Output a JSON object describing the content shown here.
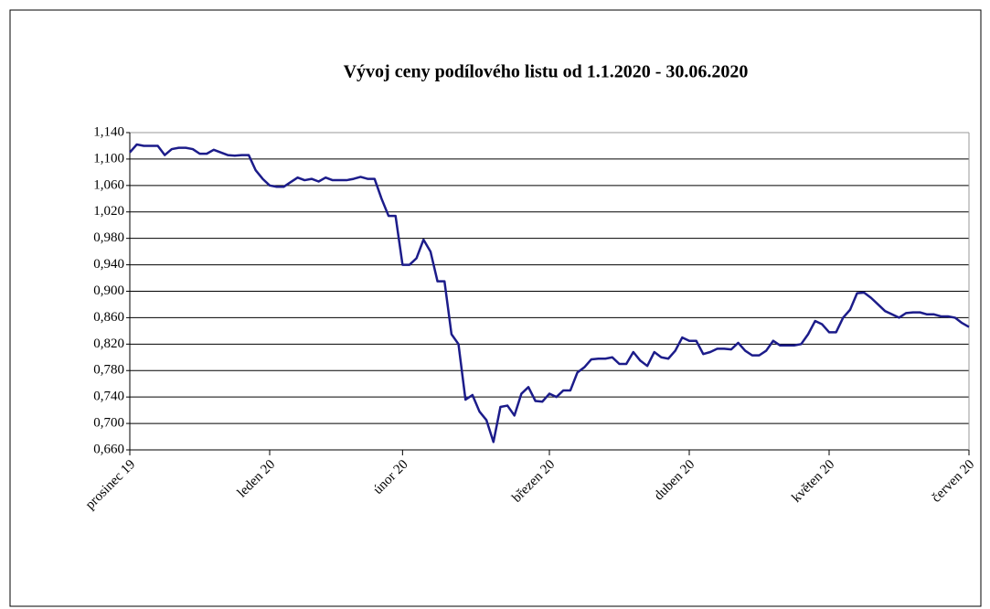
{
  "chart_data": {
    "type": "line",
    "title": "Vývoj ceny podílového listu od 1.1.2020 - 30.06.2020",
    "categories": [
      "prosinec 19",
      null,
      null,
      null,
      null,
      null,
      null,
      null,
      null,
      null,
      null,
      null,
      null,
      null,
      null,
      null,
      null,
      null,
      null,
      null,
      "leden 20",
      null,
      null,
      null,
      null,
      null,
      null,
      null,
      null,
      null,
      null,
      null,
      null,
      null,
      null,
      null,
      null,
      null,
      null,
      "únor 20",
      null,
      null,
      null,
      null,
      null,
      null,
      null,
      null,
      null,
      null,
      null,
      null,
      null,
      null,
      null,
      null,
      null,
      null,
      null,
      null,
      "březen 20",
      null,
      null,
      null,
      null,
      null,
      null,
      null,
      null,
      null,
      null,
      null,
      null,
      null,
      null,
      null,
      null,
      null,
      null,
      null,
      "duben 20",
      null,
      null,
      null,
      null,
      null,
      null,
      null,
      null,
      null,
      null,
      null,
      null,
      null,
      null,
      null,
      null,
      null,
      null,
      null,
      "květen 20",
      null,
      null,
      null,
      null,
      null,
      null,
      null,
      null,
      null,
      null,
      null,
      null,
      null,
      null,
      null,
      null,
      null,
      null,
      null,
      "červen 20"
    ],
    "values": [
      1.11,
      1.122,
      1.12,
      1.12,
      1.12,
      1.106,
      1.115,
      1.117,
      1.117,
      1.115,
      1.108,
      1.108,
      1.114,
      1.11,
      1.106,
      1.105,
      1.106,
      1.106,
      1.083,
      1.07,
      1.06,
      1.058,
      1.058,
      1.065,
      1.072,
      1.068,
      1.07,
      1.066,
      1.072,
      1.068,
      1.068,
      1.068,
      1.07,
      1.073,
      1.07,
      1.07,
      1.04,
      1.014,
      1.014,
      0.94,
      0.94,
      0.95,
      0.978,
      0.96,
      0.915,
      0.915,
      0.835,
      0.82,
      0.736,
      0.743,
      0.718,
      0.705,
      0.672,
      0.725,
      0.727,
      0.712,
      0.745,
      0.755,
      0.734,
      0.733,
      0.745,
      0.74,
      0.75,
      0.75,
      0.777,
      0.785,
      0.797,
      0.798,
      0.798,
      0.8,
      0.79,
      0.79,
      0.808,
      0.795,
      0.787,
      0.808,
      0.8,
      0.798,
      0.81,
      0.83,
      0.825,
      0.825,
      0.805,
      0.808,
      0.813,
      0.813,
      0.812,
      0.822,
      0.81,
      0.803,
      0.803,
      0.81,
      0.825,
      0.818,
      0.818,
      0.818,
      0.82,
      0.835,
      0.855,
      0.85,
      0.838,
      0.838,
      0.86,
      0.872,
      0.897,
      0.898,
      0.89,
      0.88,
      0.87,
      0.865,
      0.86,
      0.867,
      0.868,
      0.868,
      0.865,
      0.865,
      0.862,
      0.862,
      0.86,
      0.852,
      0.846
    ],
    "color": "#1c1c8a",
    "ylim": [
      0.66,
      1.14
    ],
    "yticks": [
      {
        "value": 0.66,
        "label": "0,660"
      },
      {
        "value": 0.7,
        "label": "0,700"
      },
      {
        "value": 0.74,
        "label": "0,740"
      },
      {
        "value": 0.78,
        "label": "0,780"
      },
      {
        "value": 0.82,
        "label": "0,820"
      },
      {
        "value": 0.86,
        "label": "0,860"
      },
      {
        "value": 0.9,
        "label": "0,900"
      },
      {
        "value": 0.94,
        "label": "0,940"
      },
      {
        "value": 0.98,
        "label": "0,980"
      },
      {
        "value": 1.02,
        "label": "1,020"
      },
      {
        "value": 1.06,
        "label": "1,060"
      },
      {
        "value": 1.1,
        "label": "1,100"
      },
      {
        "value": 1.14,
        "label": "1,140"
      }
    ],
    "grid": true
  }
}
